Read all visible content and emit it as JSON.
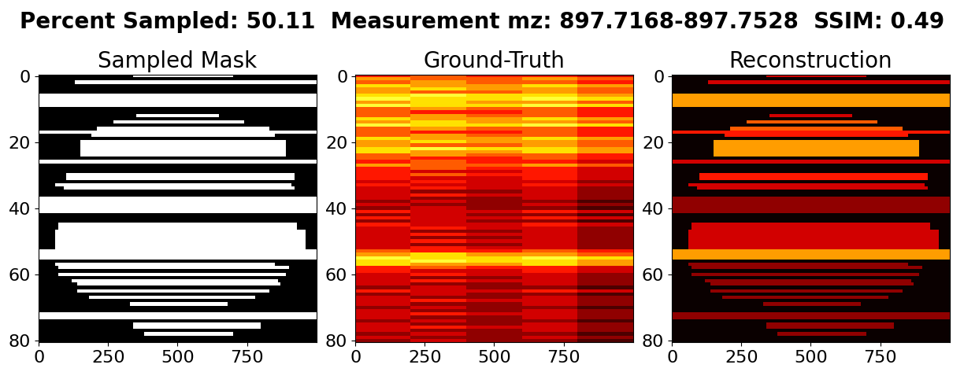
{
  "figure_title": "Percent Sampled: 50.11  Measurement mz: 897.7168-897.7528  SSIM: 0.49",
  "chart_data": [
    {
      "type": "mask",
      "title": "Sampled Mask",
      "xlim": [
        -0.5,
        999.5
      ],
      "ylim": [
        80.5,
        -0.5
      ],
      "xticks": [
        0,
        250,
        500,
        750
      ],
      "yticks": [
        0,
        20,
        40,
        60,
        80
      ],
      "clim": [
        0,
        1
      ],
      "background": 0,
      "sampled_lines": [
        {
          "rows": [
            0,
            0
          ],
          "x": [
            340,
            700
          ],
          "value": 1
        },
        {
          "rows": [
            2,
            2
          ],
          "x": [
            130,
            1000
          ],
          "value": 1
        },
        {
          "rows": [
            6,
            9
          ],
          "x": [
            0,
            1000
          ],
          "value": 1
        },
        {
          "rows": [
            12,
            12
          ],
          "x": [
            350,
            650
          ],
          "value": 1
        },
        {
          "rows": [
            14,
            14
          ],
          "x": [
            270,
            740
          ],
          "value": 1
        },
        {
          "rows": [
            16,
            16
          ],
          "x": [
            210,
            830
          ],
          "value": 1
        },
        {
          "rows": [
            17,
            17
          ],
          "x": [
            0,
            1000
          ],
          "value": 1
        },
        {
          "rows": [
            18,
            18
          ],
          "x": [
            190,
            850
          ],
          "value": 1
        },
        {
          "rows": [
            20,
            24
          ],
          "x": [
            150,
            890
          ],
          "value": 1
        },
        {
          "rows": [
            26,
            26
          ],
          "x": [
            0,
            1000
          ],
          "value": 1
        },
        {
          "rows": [
            30,
            31
          ],
          "x": [
            100,
            920
          ],
          "value": 1
        },
        {
          "rows": [
            33,
            33
          ],
          "x": [
            60,
            910
          ],
          "value": 1
        },
        {
          "rows": [
            34,
            34
          ],
          "x": [
            90,
            920
          ],
          "value": 1
        },
        {
          "rows": [
            37,
            41
          ],
          "x": [
            0,
            1000
          ],
          "value": 1
        },
        {
          "rows": [
            45,
            46
          ],
          "x": [
            70,
            930
          ],
          "value": 1
        },
        {
          "rows": [
            47,
            52
          ],
          "x": [
            60,
            960
          ],
          "value": 1
        },
        {
          "rows": [
            53,
            55
          ],
          "x": [
            0,
            1000
          ],
          "value": 1
        },
        {
          "rows": [
            57,
            57
          ],
          "x": [
            60,
            850
          ],
          "value": 1
        },
        {
          "rows": [
            58,
            58
          ],
          "x": [
            70,
            900
          ],
          "value": 1
        },
        {
          "rows": [
            60,
            60
          ],
          "x": [
            70,
            890
          ],
          "value": 1
        },
        {
          "rows": [
            62,
            62
          ],
          "x": [
            120,
            860
          ],
          "value": 1
        },
        {
          "rows": [
            63,
            63
          ],
          "x": [
            140,
            870
          ],
          "value": 1
        },
        {
          "rows": [
            65,
            65
          ],
          "x": [
            140,
            830
          ],
          "value": 1
        },
        {
          "rows": [
            67,
            67
          ],
          "x": [
            180,
            780
          ],
          "value": 1
        },
        {
          "rows": [
            69,
            69
          ],
          "x": [
            330,
            680
          ],
          "value": 1
        },
        {
          "rows": [
            72,
            73
          ],
          "x": [
            0,
            1000
          ],
          "value": 1
        },
        {
          "rows": [
            75,
            76
          ],
          "x": [
            340,
            800
          ],
          "value": 1
        },
        {
          "rows": [
            78,
            78
          ],
          "x": [
            380,
            700
          ],
          "value": 1
        }
      ]
    },
    {
      "type": "heatmap",
      "title": "Ground-Truth",
      "xlim": [
        -0.5,
        999.5
      ],
      "ylim": [
        80.5,
        -0.5
      ],
      "xticks": [
        0,
        250,
        500,
        750
      ],
      "yticks": [
        0,
        20,
        40,
        60,
        80
      ],
      "clim": [
        0,
        10
      ],
      "cells": [
        [
          4,
          5,
          4,
          4,
          3
        ],
        [
          6,
          5,
          5,
          6,
          5
        ],
        [
          5,
          6,
          5,
          5,
          4
        ],
        [
          7,
          6,
          6,
          7,
          6
        ],
        [
          6,
          7,
          6,
          6,
          5
        ],
        [
          6,
          5,
          5,
          6,
          5
        ],
        [
          7,
          8,
          7,
          7,
          6
        ],
        [
          8,
          7,
          7,
          8,
          7
        ],
        [
          6,
          7,
          6,
          6,
          5
        ],
        [
          8,
          7,
          7,
          8,
          7
        ],
        [
          5,
          6,
          5,
          5,
          4
        ],
        [
          5,
          4,
          4,
          5,
          4
        ],
        [
          5,
          6,
          5,
          5,
          4
        ],
        [
          7,
          6,
          6,
          7,
          6
        ],
        [
          6,
          7,
          6,
          6,
          5
        ],
        [
          8,
          7,
          7,
          8,
          7
        ],
        [
          5,
          6,
          5,
          5,
          4
        ],
        [
          5,
          4,
          4,
          5,
          4
        ],
        [
          5,
          6,
          5,
          5,
          4
        ],
        [
          7,
          6,
          6,
          7,
          6
        ],
        [
          6,
          7,
          6,
          6,
          5
        ],
        [
          6,
          5,
          5,
          6,
          5
        ],
        [
          7,
          8,
          7,
          7,
          6
        ],
        [
          7,
          6,
          6,
          7,
          6
        ],
        [
          5,
          6,
          5,
          5,
          4
        ],
        [
          5,
          4,
          4,
          5,
          4
        ],
        [
          4,
          5,
          4,
          4,
          3
        ],
        [
          6,
          5,
          5,
          6,
          5
        ],
        [
          4,
          5,
          4,
          4,
          3
        ],
        [
          4,
          3,
          3,
          4,
          3
        ],
        [
          4,
          5,
          4,
          4,
          3
        ],
        [
          4,
          3,
          3,
          4,
          3
        ],
        [
          3,
          4,
          3,
          3,
          2
        ],
        [
          4,
          3,
          3,
          4,
          3
        ],
        [
          3,
          4,
          3,
          3,
          2
        ],
        [
          3,
          2,
          2,
          3,
          2
        ],
        [
          3,
          4,
          3,
          3,
          2
        ],
        [
          3,
          2,
          2,
          3,
          2
        ],
        [
          2,
          3,
          2,
          2,
          1
        ],
        [
          3,
          2,
          2,
          3,
          2
        ],
        [
          2,
          3,
          2,
          2,
          1
        ],
        [
          4,
          3,
          3,
          4,
          3
        ],
        [
          2,
          3,
          2,
          2,
          1
        ],
        [
          4,
          3,
          3,
          4,
          3
        ],
        [
          2,
          3,
          2,
          2,
          1
        ],
        [
          4,
          3,
          3,
          4,
          3
        ],
        [
          3,
          4,
          3,
          3,
          2
        ],
        [
          3,
          2,
          2,
          3,
          2
        ],
        [
          3,
          4,
          3,
          3,
          2
        ],
        [
          3,
          2,
          2,
          3,
          2
        ],
        [
          3,
          4,
          3,
          3,
          2
        ],
        [
          3,
          2,
          2,
          3,
          2
        ],
        [
          3,
          4,
          3,
          3,
          2
        ],
        [
          5,
          4,
          4,
          5,
          4
        ],
        [
          6,
          7,
          6,
          6,
          5
        ],
        [
          8,
          7,
          7,
          8,
          7
        ],
        [
          7,
          8,
          7,
          7,
          6
        ],
        [
          7,
          6,
          6,
          7,
          6
        ],
        [
          4,
          5,
          4,
          4,
          3
        ],
        [
          4,
          3,
          3,
          4,
          3
        ],
        [
          3,
          4,
          3,
          3,
          2
        ],
        [
          3,
          2,
          2,
          3,
          2
        ],
        [
          3,
          4,
          3,
          3,
          2
        ],
        [
          3,
          2,
          2,
          3,
          2
        ],
        [
          2,
          3,
          2,
          2,
          1
        ],
        [
          4,
          3,
          3,
          4,
          3
        ],
        [
          2,
          3,
          2,
          2,
          1
        ],
        [
          3,
          2,
          2,
          3,
          2
        ],
        [
          3,
          4,
          3,
          3,
          2
        ],
        [
          3,
          2,
          2,
          3,
          2
        ],
        [
          2,
          3,
          2,
          2,
          1
        ],
        [
          3,
          2,
          2,
          3,
          2
        ],
        [
          3,
          4,
          3,
          3,
          2
        ],
        [
          3,
          2,
          2,
          3,
          2
        ],
        [
          2,
          3,
          2,
          2,
          1
        ],
        [
          3,
          2,
          2,
          3,
          2
        ],
        [
          3,
          4,
          3,
          3,
          2
        ],
        [
          3,
          2,
          2,
          3,
          2
        ],
        [
          2,
          3,
          2,
          2,
          1
        ],
        [
          3,
          2,
          2,
          3,
          2
        ],
        [
          2,
          3,
          2,
          2,
          1
        ]
      ]
    },
    {
      "type": "heatmap",
      "title": "Reconstruction",
      "xlim": [
        -0.5,
        999.5
      ],
      "ylim": [
        80.5,
        -0.5
      ],
      "xticks": [
        0,
        250,
        500,
        750
      ],
      "yticks": [
        0,
        20,
        40,
        60,
        80
      ],
      "clim": [
        0,
        10
      ],
      "background": 0,
      "sampled_lines": [
        {
          "rows": [
            0,
            0
          ],
          "x": [
            340,
            700
          ],
          "value": 3
        },
        {
          "rows": [
            2,
            2
          ],
          "x": [
            130,
            1000
          ],
          "value": 3
        },
        {
          "rows": [
            6,
            9
          ],
          "x": [
            0,
            1000
          ],
          "value": 6
        },
        {
          "rows": [
            12,
            12
          ],
          "x": [
            350,
            650
          ],
          "value": 3
        },
        {
          "rows": [
            14,
            14
          ],
          "x": [
            270,
            740
          ],
          "value": 5
        },
        {
          "rows": [
            16,
            16
          ],
          "x": [
            210,
            830
          ],
          "value": 5
        },
        {
          "rows": [
            17,
            17
          ],
          "x": [
            0,
            1000
          ],
          "value": 4
        },
        {
          "rows": [
            18,
            18
          ],
          "x": [
            190,
            850
          ],
          "value": 4
        },
        {
          "rows": [
            20,
            24
          ],
          "x": [
            150,
            890
          ],
          "value": 6
        },
        {
          "rows": [
            26,
            26
          ],
          "x": [
            0,
            1000
          ],
          "value": 3
        },
        {
          "rows": [
            30,
            31
          ],
          "x": [
            100,
            920
          ],
          "value": 4
        },
        {
          "rows": [
            33,
            33
          ],
          "x": [
            60,
            910
          ],
          "value": 3
        },
        {
          "rows": [
            34,
            34
          ],
          "x": [
            90,
            920
          ],
          "value": 3
        },
        {
          "rows": [
            37,
            41
          ],
          "x": [
            0,
            1000
          ],
          "value": 2
        },
        {
          "rows": [
            45,
            46
          ],
          "x": [
            70,
            930
          ],
          "value": 3
        },
        {
          "rows": [
            47,
            52
          ],
          "x": [
            60,
            960
          ],
          "value": 3
        },
        {
          "rows": [
            53,
            55
          ],
          "x": [
            0,
            1000
          ],
          "value": 6
        },
        {
          "rows": [
            57,
            57
          ],
          "x": [
            60,
            850
          ],
          "value": 2
        },
        {
          "rows": [
            58,
            58
          ],
          "x": [
            70,
            900
          ],
          "value": 2
        },
        {
          "rows": [
            60,
            60
          ],
          "x": [
            70,
            890
          ],
          "value": 2
        },
        {
          "rows": [
            62,
            62
          ],
          "x": [
            120,
            860
          ],
          "value": 2
        },
        {
          "rows": [
            63,
            63
          ],
          "x": [
            140,
            870
          ],
          "value": 2
        },
        {
          "rows": [
            65,
            65
          ],
          "x": [
            140,
            830
          ],
          "value": 2
        },
        {
          "rows": [
            67,
            67
          ],
          "x": [
            180,
            780
          ],
          "value": 2
        },
        {
          "rows": [
            69,
            69
          ],
          "x": [
            330,
            680
          ],
          "value": 2
        },
        {
          "rows": [
            72,
            73
          ],
          "x": [
            0,
            1000
          ],
          "value": 2
        },
        {
          "rows": [
            75,
            76
          ],
          "x": [
            340,
            800
          ],
          "value": 2
        },
        {
          "rows": [
            78,
            78
          ],
          "x": [
            380,
            700
          ],
          "value": 2
        }
      ]
    }
  ]
}
